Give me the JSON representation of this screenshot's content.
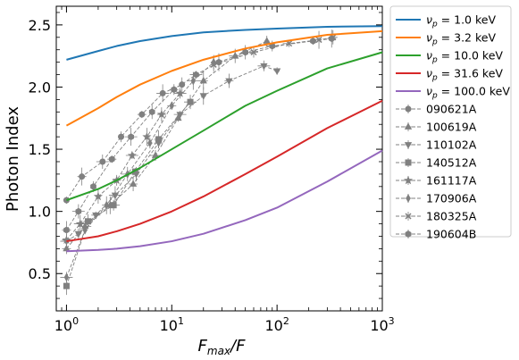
{
  "chart_data": {
    "type": "line",
    "xlabel_main": "F",
    "xlabel_sub": "max",
    "xlabel_tail": "/F",
    "ylabel": "Photon Index",
    "x_scale": "log",
    "xlim": [
      0.8,
      1000
    ],
    "ylim": [
      0.2,
      2.65
    ],
    "x_ticks": [
      {
        "value": 1,
        "base": "10",
        "exp": "0"
      },
      {
        "value": 10,
        "base": "10",
        "exp": "1"
      },
      {
        "value": 100,
        "base": "10",
        "exp": "2"
      },
      {
        "value": 1000,
        "base": "10",
        "exp": "3"
      }
    ],
    "y_ticks": [
      {
        "value": 0.5,
        "label": "0.5"
      },
      {
        "value": 1.0,
        "label": "1.0"
      },
      {
        "value": 1.5,
        "label": "1.5"
      },
      {
        "value": 2.0,
        "label": "2.0"
      },
      {
        "value": 2.5,
        "label": "2.5"
      }
    ],
    "grid": false,
    "legend_position": "outside-right",
    "series": [
      {
        "name": "ν",
        "name_sub": "p",
        "name_tail": " = 1.0 keV",
        "color": "#1f77b4",
        "kind": "model",
        "x": [
          1,
          2,
          3,
          5,
          10,
          20,
          50,
          100,
          300,
          1000
        ],
        "y": [
          2.22,
          2.29,
          2.33,
          2.37,
          2.41,
          2.44,
          2.46,
          2.47,
          2.485,
          2.49
        ]
      },
      {
        "name": "ν",
        "name_sub": "p",
        "name_tail": " = 3.2 keV",
        "color": "#ff7f0e",
        "kind": "model",
        "x": [
          1,
          2,
          3,
          5,
          10,
          20,
          50,
          100,
          300,
          1000
        ],
        "y": [
          1.69,
          1.83,
          1.92,
          2.02,
          2.13,
          2.22,
          2.31,
          2.36,
          2.42,
          2.45
        ]
      },
      {
        "name": "ν",
        "name_sub": "p",
        "name_tail": " = 10.0 keV",
        "color": "#2ca02c",
        "kind": "model",
        "x": [
          1,
          2,
          3,
          5,
          10,
          20,
          50,
          100,
          300,
          1000
        ],
        "y": [
          1.09,
          1.18,
          1.25,
          1.35,
          1.5,
          1.65,
          1.85,
          1.97,
          2.15,
          2.28
        ]
      },
      {
        "name": "ν",
        "name_sub": "p",
        "name_tail": " = 31.6 keV",
        "color": "#d62728",
        "kind": "model",
        "x": [
          1,
          2,
          3,
          5,
          10,
          20,
          50,
          100,
          300,
          1000
        ],
        "y": [
          0.76,
          0.8,
          0.84,
          0.9,
          1.0,
          1.12,
          1.3,
          1.44,
          1.67,
          1.89
        ]
      },
      {
        "name": "ν",
        "name_sub": "p",
        "name_tail": " = 100.0 keV",
        "color": "#9467bd",
        "kind": "model",
        "x": [
          1,
          2,
          3,
          5,
          10,
          20,
          50,
          100,
          300,
          1000
        ],
        "y": [
          0.68,
          0.69,
          0.7,
          0.72,
          0.76,
          0.82,
          0.93,
          1.03,
          1.24,
          1.49
        ]
      },
      {
        "name": "090621A",
        "marker": "circle",
        "color": "#808080",
        "kind": "data",
        "x": [
          1.0,
          1.4,
          2.2,
          3.3,
          5.2,
          8.2,
          12.5
        ],
        "y": [
          1.09,
          1.28,
          1.4,
          1.6,
          1.78,
          1.95,
          2.02
        ]
      },
      {
        "name": "100619A",
        "marker": "triangle-up",
        "color": "#808080",
        "kind": "data",
        "x": [
          1.0,
          1.5,
          2.6,
          4.3,
          7.0,
          11.5,
          20.0,
          40.0,
          80.0
        ],
        "y": [
          0.7,
          0.88,
          1.05,
          1.22,
          1.45,
          1.75,
          2.05,
          2.25,
          2.37
        ]
      },
      {
        "name": "110102A",
        "marker": "triangle-down",
        "color": "#808080",
        "kind": "data",
        "x": [
          1.0,
          1.3,
          1.9,
          2.9,
          4.6,
          7.5,
          12.0,
          20.0,
          35.0,
          75.0,
          100.0
        ],
        "y": [
          0.76,
          0.82,
          0.97,
          1.13,
          1.3,
          1.55,
          1.78,
          1.93,
          2.05,
          2.17,
          2.13
        ]
      },
      {
        "name": "140512A",
        "marker": "square",
        "color": "#808080",
        "kind": "data",
        "x": [
          1.0,
          1.6,
          2.8,
          4.5,
          7.5,
          15.0
        ],
        "y": [
          0.4,
          0.92,
          1.05,
          1.32,
          1.58,
          1.88
        ]
      },
      {
        "name": "161117A",
        "marker": "star",
        "color": "#808080",
        "kind": "data",
        "x": [
          1.0,
          1.35,
          2.0,
          3.0,
          4.2,
          5.8,
          8.0,
          12.0
        ],
        "y": [
          0.77,
          0.9,
          1.12,
          1.25,
          1.45,
          1.6,
          1.78,
          1.95
        ]
      },
      {
        "name": "170906A",
        "marker": "thin-diamond",
        "color": "#808080",
        "kind": "data",
        "x": [
          1.0,
          1.5,
          2.4,
          3.8,
          6.2,
          10.0,
          16.0,
          25.0
        ],
        "y": [
          0.47,
          0.85,
          1.05,
          1.3,
          1.55,
          1.85,
          2.05,
          2.2
        ]
      },
      {
        "name": "180325A",
        "marker": "x",
        "color": "#808080",
        "kind": "data",
        "x": [
          25.0,
          60.0,
          130.0,
          250.0,
          340.0
        ],
        "y": [
          2.18,
          2.28,
          2.35,
          2.38,
          2.4
        ]
      },
      {
        "name": "190604B",
        "marker": "hexagon",
        "color": "#808080",
        "kind": "data",
        "x": [
          1.0,
          1.3,
          1.8,
          2.7,
          4.1,
          6.5,
          10.5,
          17.0,
          28.0,
          50.0,
          90.0,
          220.0,
          330.0
        ],
        "y": [
          0.85,
          1.0,
          1.2,
          1.42,
          1.6,
          1.8,
          1.98,
          2.1,
          2.2,
          2.28,
          2.33,
          2.37,
          2.39
        ]
      }
    ]
  }
}
